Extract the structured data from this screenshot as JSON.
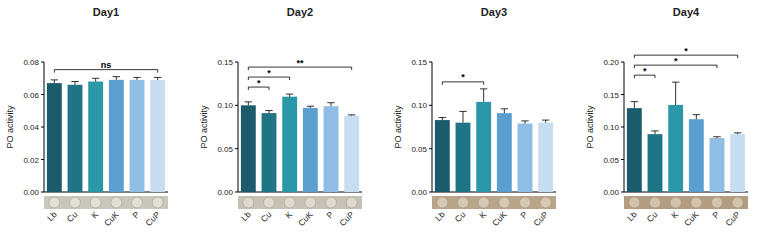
{
  "chart_data": [
    {
      "type": "bar",
      "title": "Day1",
      "y_label": "PO activity",
      "categories": [
        "Lb",
        "Cu",
        "K",
        "CuK",
        "P",
        "CuP"
      ],
      "values": [
        0.067,
        0.066,
        0.068,
        0.069,
        0.069,
        0.069
      ],
      "errors": [
        0.002,
        0.002,
        0.002,
        0.002,
        0.0015,
        0.0015
      ],
      "colors": [
        "#1b5b6b",
        "#1f7586",
        "#2a98a6",
        "#5b9fd1",
        "#8fbde3",
        "#c7def2"
      ],
      "ylim": [
        0,
        0.08
      ],
      "yticks": [
        {
          "value": 0,
          "label": "0.00"
        },
        {
          "value": 0.02,
          "label": "0.02"
        },
        {
          "value": 0.04,
          "label": "0.04"
        },
        {
          "value": 0.06,
          "label": "0.06"
        },
        {
          "value": 0.08,
          "label": "0.08"
        }
      ],
      "annotations": [
        {
          "from": 0,
          "to": 5,
          "label": "ns"
        }
      ]
    },
    {
      "type": "bar",
      "title": "Day2",
      "y_label": "PO activity",
      "categories": [
        "Lb",
        "Cu",
        "K",
        "CuK",
        "P",
        "CuP"
      ],
      "values": [
        0.1,
        0.091,
        0.11,
        0.097,
        0.099,
        0.088
      ],
      "errors": [
        0.004,
        0.003,
        0.003,
        0.002,
        0.004,
        0.001
      ],
      "colors": [
        "#1b5b6b",
        "#1f7586",
        "#2a98a6",
        "#5b9fd1",
        "#8fbde3",
        "#c7def2"
      ],
      "ylim": [
        0,
        0.15
      ],
      "yticks": [
        {
          "value": 0,
          "label": "0.00"
        },
        {
          "value": 0.05,
          "label": "0.05"
        },
        {
          "value": 0.1,
          "label": "0.10"
        },
        {
          "value": 0.15,
          "label": "0.15"
        }
      ],
      "annotations": [
        {
          "from": 0,
          "to": 1,
          "label": "*"
        },
        {
          "from": 0,
          "to": 2,
          "label": "*"
        },
        {
          "from": 0,
          "to": 5,
          "label": "**"
        }
      ]
    },
    {
      "type": "bar",
      "title": "Day3",
      "y_label": "PO activity",
      "categories": [
        "Lb",
        "Cu",
        "K",
        "CuK",
        "P",
        "CuP"
      ],
      "values": [
        0.083,
        0.08,
        0.104,
        0.091,
        0.079,
        0.08
      ],
      "errors": [
        0.003,
        0.013,
        0.015,
        0.005,
        0.003,
        0.003
      ],
      "colors": [
        "#1b5b6b",
        "#1f7586",
        "#2a98a6",
        "#5b9fd1",
        "#8fbde3",
        "#c7def2"
      ],
      "ylim": [
        0,
        0.15
      ],
      "yticks": [
        {
          "value": 0,
          "label": "0.00"
        },
        {
          "value": 0.05,
          "label": "0.05"
        },
        {
          "value": 0.1,
          "label": "0.10"
        },
        {
          "value": 0.15,
          "label": "0.15"
        }
      ],
      "annotations": [
        {
          "from": 0,
          "to": 2,
          "label": "*"
        }
      ]
    },
    {
      "type": "bar",
      "title": "Day4",
      "y_label": "PO activity",
      "categories": [
        "Lb",
        "Cu",
        "K",
        "CuK",
        "P",
        "CuP"
      ],
      "values": [
        0.129,
        0.089,
        0.134,
        0.112,
        0.083,
        0.089
      ],
      "errors": [
        0.01,
        0.005,
        0.035,
        0.007,
        0.002,
        0.002
      ],
      "colors": [
        "#1b5b6b",
        "#1f7586",
        "#2a98a6",
        "#5b9fd1",
        "#8fbde3",
        "#c7def2"
      ],
      "ylim": [
        0,
        0.2
      ],
      "yticks": [
        {
          "value": 0,
          "label": "0.00"
        },
        {
          "value": 0.05,
          "label": "0.05"
        },
        {
          "value": 0.1,
          "label": "0.10"
        },
        {
          "value": 0.15,
          "label": "0.15"
        },
        {
          "value": 0.2,
          "label": "0.20"
        }
      ],
      "annotations": [
        {
          "from": 0,
          "to": 1,
          "label": "*"
        },
        {
          "from": 0,
          "to": 4,
          "label": "*"
        },
        {
          "from": 0,
          "to": 5,
          "label": "*"
        }
      ]
    }
  ]
}
